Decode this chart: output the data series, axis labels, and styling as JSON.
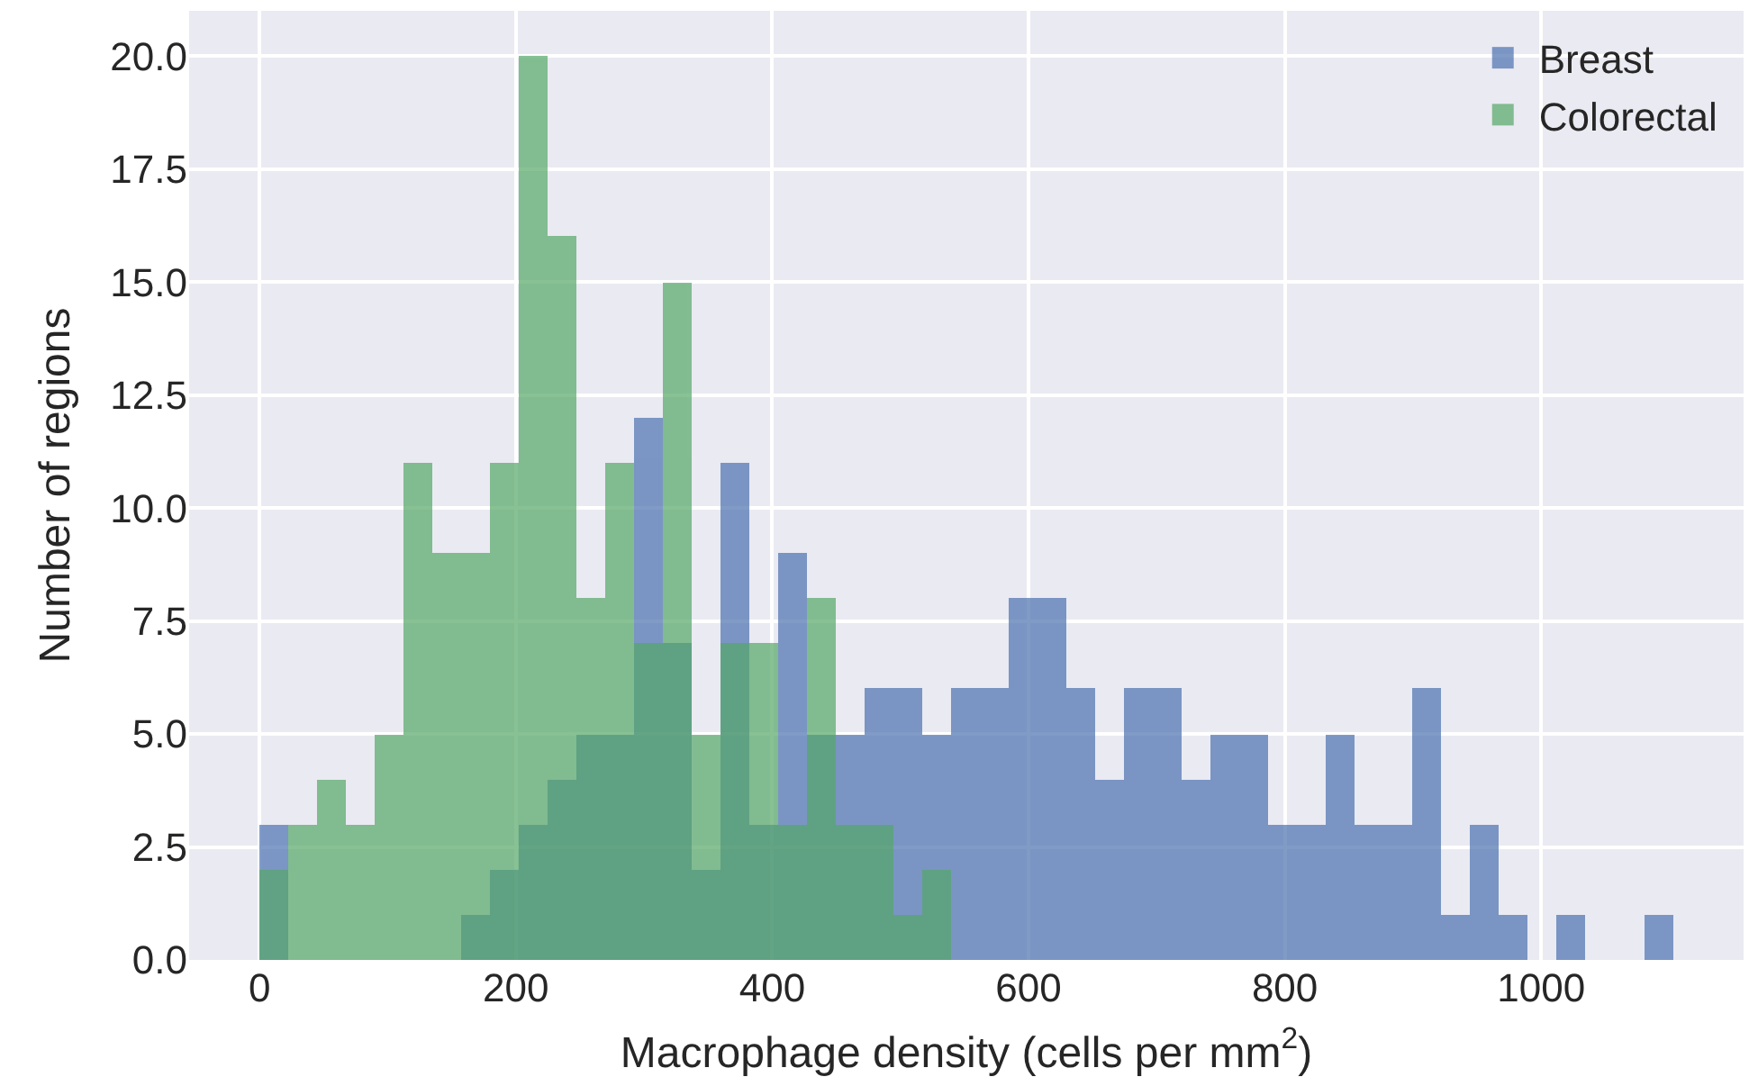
{
  "chart_data": {
    "type": "histogram",
    "xlabel": "Macrophage density (cells per mm$^{2}$)",
    "ylabel": "Number of regions",
    "bins": [
      0,
      22.5,
      45,
      67.5,
      90,
      112.5,
      135,
      157.5,
      180,
      202.5,
      225,
      247.5,
      270,
      292.5,
      315,
      337.5,
      360,
      382.5,
      405,
      427.5,
      450,
      472.5,
      495,
      517.5,
      540,
      562.5,
      585,
      607.5,
      630,
      652.5,
      675,
      697.5,
      720,
      742.5,
      765,
      787.5,
      810,
      832.5,
      855,
      877.5,
      900,
      922.5,
      945,
      967.5,
      990,
      1012.5,
      1035,
      1057.5,
      1080,
      1102.5
    ],
    "series": [
      {
        "name": "Breast",
        "color": "#4c72b0",
        "values": [
          3,
          0,
          0,
          0,
          0,
          0,
          0,
          1,
          2,
          3,
          4,
          5,
          5,
          12,
          7,
          2,
          11,
          3,
          9,
          5,
          5,
          6,
          6,
          5,
          6,
          6,
          8,
          8,
          6,
          4,
          6,
          6,
          4,
          5,
          5,
          3,
          3,
          5,
          3,
          3,
          6,
          1,
          3,
          1,
          0,
          1,
          0,
          0,
          1
        ]
      },
      {
        "name": "Colorectal",
        "color": "#55a868",
        "values": [
          2,
          3,
          4,
          3,
          5,
          11,
          9,
          9,
          11,
          20,
          16,
          8,
          11,
          7,
          15,
          5,
          7,
          7,
          3,
          8,
          3,
          3,
          1,
          2,
          0,
          0,
          0,
          0,
          0,
          0,
          0,
          0,
          0,
          0,
          0,
          0,
          0,
          0,
          0,
          0,
          0,
          0,
          0,
          0,
          0,
          0,
          0,
          0,
          0
        ]
      }
    ],
    "xlim": [
      -55,
      1158
    ],
    "xticks": [
      0,
      200,
      400,
      600,
      800,
      1000
    ],
    "ylim": [
      0,
      21
    ],
    "yticks": [
      {
        "value": 0,
        "label": "0.0"
      },
      {
        "value": 2.5,
        "label": "2.5"
      },
      {
        "value": 5,
        "label": "5.0"
      },
      {
        "value": 7.5,
        "label": "7.5"
      },
      {
        "value": 10,
        "label": "10.0"
      },
      {
        "value": 12.5,
        "label": "12.5"
      },
      {
        "value": 15,
        "label": "15.0"
      },
      {
        "value": 17.5,
        "label": "17.5"
      },
      {
        "value": 20,
        "label": "20.0"
      }
    ],
    "grid": true,
    "legend": "top right"
  }
}
